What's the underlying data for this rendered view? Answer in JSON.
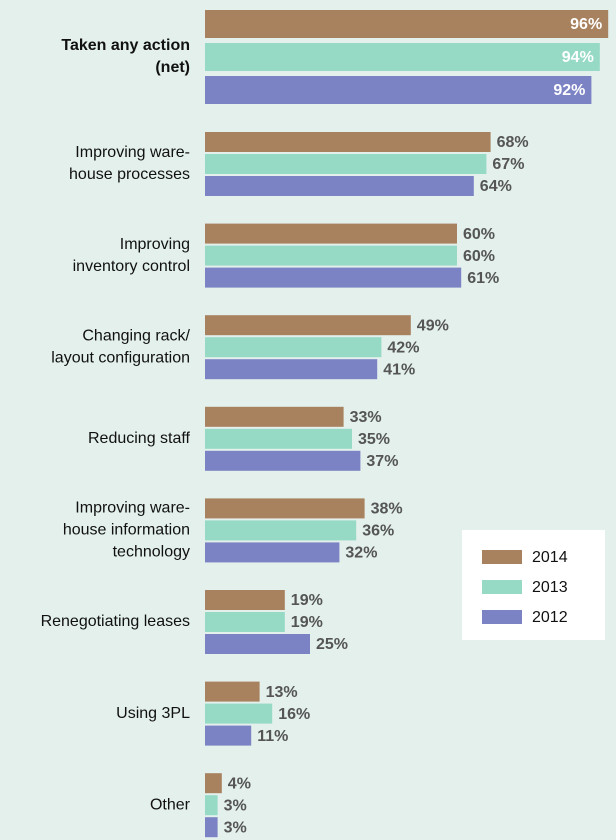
{
  "chart_data": {
    "type": "barh",
    "categories": [
      [
        "Taken any action",
        "(net)"
      ],
      [
        "Improving ware-",
        "house processes"
      ],
      [
        "Improving",
        "inventory control"
      ],
      [
        "Changing rack/",
        "layout configuration"
      ],
      [
        "Reducing staff"
      ],
      [
        "Improving ware-",
        "house information",
        "technology"
      ],
      [
        "Renegotiating leases"
      ],
      [
        "Using 3PL"
      ],
      [
        "Other"
      ]
    ],
    "series": [
      {
        "name": "2014",
        "color": "#a8815f",
        "values": [
          96,
          68,
          60,
          49,
          33,
          38,
          19,
          13,
          4
        ],
        "value_labels": [
          "96%",
          "68%",
          "60%",
          "49%",
          "33%",
          "38%",
          "19%",
          "13%",
          "4%"
        ]
      },
      {
        "name": "2013",
        "color": "#96d9c4",
        "values": [
          94,
          67,
          60,
          42,
          35,
          36,
          19,
          16,
          3
        ],
        "value_labels": [
          "94%",
          "67%",
          "60%",
          "42%",
          "35%",
          "36%",
          "19%",
          "16%",
          "3%"
        ]
      },
      {
        "name": "2012",
        "color": "#7b83c4",
        "values": [
          92,
          64,
          61,
          41,
          37,
          32,
          25,
          11,
          3
        ],
        "value_labels": [
          "92%",
          "64%",
          "61%",
          "41%",
          "37%",
          "32%",
          "25%",
          "11%",
          "3%"
        ]
      }
    ],
    "xlim": [
      0,
      100
    ],
    "legend": "right"
  }
}
